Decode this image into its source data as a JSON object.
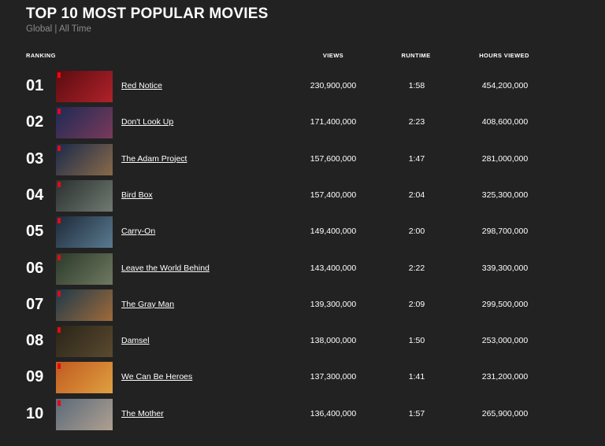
{
  "header": {
    "title": "TOP 10 MOST POPULAR MOVIES",
    "subtitle": "Global | All Time"
  },
  "table": {
    "columns": [
      "RANKING",
      "VIEWS",
      "RUNTIME",
      "HOURS VIEWED"
    ],
    "rows": [
      {
        "rank": "01",
        "title": "Red Notice",
        "views": "230,900,000",
        "runtime": "1:58",
        "hours": "454,200,000"
      },
      {
        "rank": "02",
        "title": "Don't Look Up",
        "views": "171,400,000",
        "runtime": "2:23",
        "hours": "408,600,000"
      },
      {
        "rank": "03",
        "title": "The Adam Project",
        "views": "157,600,000",
        "runtime": "1:47",
        "hours": "281,000,000"
      },
      {
        "rank": "04",
        "title": "Bird Box",
        "views": "157,400,000",
        "runtime": "2:04",
        "hours": "325,300,000"
      },
      {
        "rank": "05",
        "title": "Carry-On",
        "views": "149,400,000",
        "runtime": "2:00",
        "hours": "298,700,000"
      },
      {
        "rank": "06",
        "title": "Leave the World Behind",
        "views": "143,400,000",
        "runtime": "2:22",
        "hours": "339,300,000"
      },
      {
        "rank": "07",
        "title": "The Gray Man",
        "views": "139,300,000",
        "runtime": "2:09",
        "hours": "299,500,000"
      },
      {
        "rank": "08",
        "title": "Damsel",
        "views": "138,000,000",
        "runtime": "1:50",
        "hours": "253,000,000"
      },
      {
        "rank": "09",
        "title": "We Can Be Heroes",
        "views": "137,300,000",
        "runtime": "1:41",
        "hours": "231,200,000"
      },
      {
        "rank": "10",
        "title": "The Mother",
        "views": "136,400,000",
        "runtime": "1:57",
        "hours": "265,900,000"
      }
    ]
  }
}
